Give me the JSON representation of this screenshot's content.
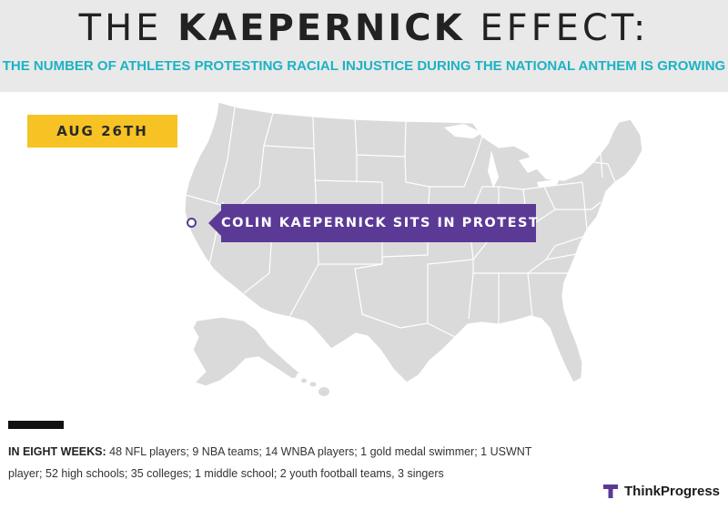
{
  "header": {
    "title_prefix": "THE",
    "title_emphasis": "KAEPERNICK",
    "title_suffix": "EFFECT:",
    "subtitle": "THE NUMBER OF ATHLETES PROTESTING RACIAL INJUSTICE DURING THE NATIONAL ANTHEM IS GROWING"
  },
  "timeline": {
    "date_label": "AUG 26TH"
  },
  "map": {
    "callout_text": "COLIN KAEPERNICK SITS IN PROTEST",
    "marker_icon": "location-ring-icon"
  },
  "stats": {
    "lead": "IN EIGHT WEEKS:",
    "body": "48 NFL players; 9 NBA teams; 14 WNBA players; 1 gold medal swimmer; 1 USWNT player; 52 high schools; 35 colleges; 1 middle school; 2 youth football teams, 3 singers"
  },
  "brand": {
    "logo_icon": "thinkprogress-t-icon",
    "name": "ThinkProgress"
  },
  "colors": {
    "header_bg": "#e9e9e9",
    "subtitle": "#1bb3c4",
    "date_badge": "#f7c324",
    "callout": "#5b3a96",
    "map_land": "#dadada",
    "map_borders": "#ffffff"
  }
}
